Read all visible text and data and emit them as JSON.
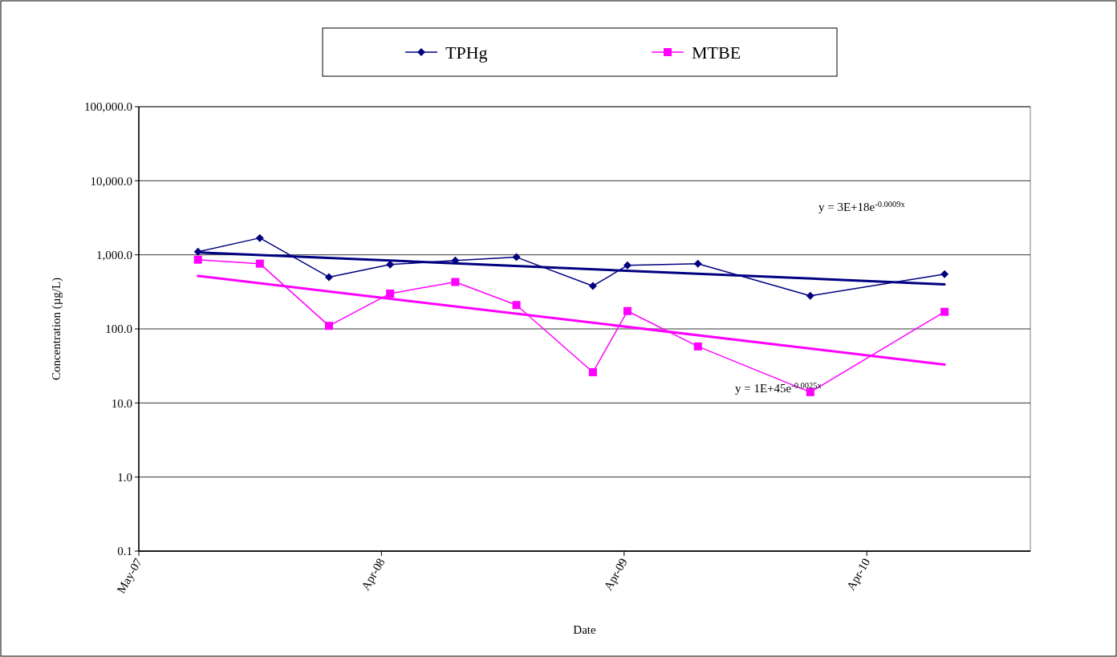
{
  "chart_data": {
    "type": "line",
    "xlabel": "Date",
    "ylabel": "Concentration (µg/L)",
    "log": "y",
    "grid": "y",
    "legend": "top",
    "xlim": [
      "2007-05-01",
      "2011-01-01"
    ],
    "xticks": [
      {
        "value": "2007-05-01",
        "label": "May-07"
      },
      {
        "value": "2008-04-30",
        "label": "Apr-08"
      },
      {
        "value": "2009-04-30",
        "label": "Apr-09"
      },
      {
        "value": "2010-04-30",
        "label": "Apr-10"
      }
    ],
    "ylim": [
      0.1,
      100000
    ],
    "yticks": [
      {
        "value": 0.1,
        "label": "0.1"
      },
      {
        "value": 1,
        "label": "1.0"
      },
      {
        "value": 10,
        "label": "10.0"
      },
      {
        "value": 100,
        "label": "100.0"
      },
      {
        "value": 1000,
        "label": "1,000.0"
      },
      {
        "value": 10000,
        "label": "10,000.0"
      },
      {
        "value": 100000,
        "label": "100,000.0"
      }
    ],
    "x": [
      "2007-07-29",
      "2007-10-30",
      "2008-02-11",
      "2008-05-13",
      "2008-08-19",
      "2008-11-19",
      "2009-03-14",
      "2009-05-05",
      "2009-08-19",
      "2010-02-04",
      "2010-08-25"
    ],
    "series": [
      {
        "name": "TPHg",
        "color": "#000080",
        "marker": "diamond",
        "values": [
          1100,
          1690,
          500,
          740,
          840,
          930,
          380,
          720,
          760,
          280,
          550
        ]
      },
      {
        "name": "MTBE",
        "color": "#ff00ff",
        "marker": "square",
        "values": [
          860,
          760,
          110,
          300,
          430,
          210,
          26,
          174,
          58,
          14,
          170
        ]
      },
      {
        "type": "line",
        "color": "#000080",
        "marker": "none",
        "x": [
          "2007-07-29",
          "2010-08-25"
        ],
        "values": [
          1080,
          400
        ]
      },
      {
        "type": "line",
        "color": "#ff00ff",
        "marker": "none",
        "x": [
          "2007-07-29",
          "2010-08-25"
        ],
        "values": [
          520,
          33
        ]
      }
    ],
    "annotations": [
      "y = 3E+18e$^{-0.0009x}$",
      "y = 1E+45e$^{-0.0025x}$"
    ]
  }
}
